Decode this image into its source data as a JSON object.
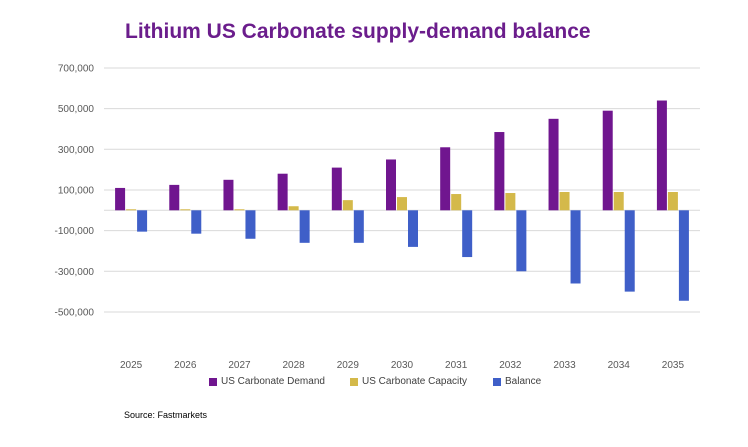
{
  "chart_data": {
    "type": "bar",
    "title": "Lithium US Carbonate supply-demand balance",
    "categories": [
      "2025",
      "2026",
      "2027",
      "2028",
      "2029",
      "2030",
      "2031",
      "2032",
      "2033",
      "2034",
      "2035"
    ],
    "series": [
      {
        "name": "US Carbonate Demand",
        "color": "#70168f",
        "values": [
          110000,
          125000,
          150000,
          180000,
          210000,
          250000,
          310000,
          385000,
          450000,
          490000,
          540000
        ]
      },
      {
        "name": "US Carbonate Capacity",
        "color": "#d4b94a",
        "values": [
          5000,
          5000,
          5000,
          20000,
          50000,
          65000,
          80000,
          85000,
          90000,
          90000,
          90000
        ]
      },
      {
        "name": "Balance",
        "color": "#3f5fc8",
        "values": [
          -105000,
          -115000,
          -140000,
          -160000,
          -160000,
          -180000,
          -230000,
          -300000,
          -360000,
          -400000,
          -445000
        ]
      }
    ],
    "yticks": [
      700000,
      500000,
      300000,
      100000,
      -100000,
      -300000,
      -500000
    ],
    "ytick_labels": [
      "700,000",
      "500,000",
      "300,000",
      "100,000",
      "-100,000",
      "-300,000",
      "-500,000"
    ],
    "ylim": [
      -600000,
      700000
    ],
    "xlabel": "",
    "ylabel": "",
    "grid": true,
    "legend_position": "bottom"
  },
  "source": "Source: Fastmarkets"
}
